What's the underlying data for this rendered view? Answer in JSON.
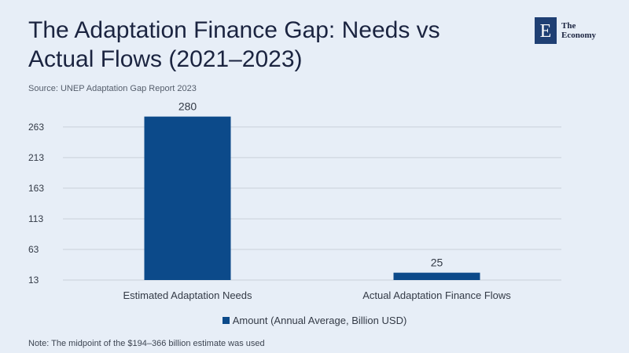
{
  "header": {
    "title": "The Adaptation Finance Gap: Needs vs Actual Flows (2021–2023)",
    "source": "Source:  UNEP Adaptation Gap Report 2023"
  },
  "logo": {
    "mark": "E",
    "text": "The\nEconomy"
  },
  "footer": {
    "note": "Note:  The midpoint of the $194–366 billion estimate was used"
  },
  "colors": {
    "bar": "#0c4a8a",
    "grid": "#c9d0da",
    "axis_text": "#333a46"
  },
  "chart_data": {
    "type": "bar",
    "categories": [
      "Estimated Adaptation Needs",
      "Actual Adaptation Finance Flows"
    ],
    "series": [
      {
        "name": "Amount (Annual Average, Billion USD)",
        "values": [
          280,
          25
        ]
      }
    ],
    "data_labels": [
      "280",
      "25"
    ],
    "yticks": [
      13,
      63,
      113,
      163,
      213,
      263
    ],
    "ylim": [
      13,
      300
    ],
    "grid": true,
    "legend_position": "bottom-center"
  }
}
